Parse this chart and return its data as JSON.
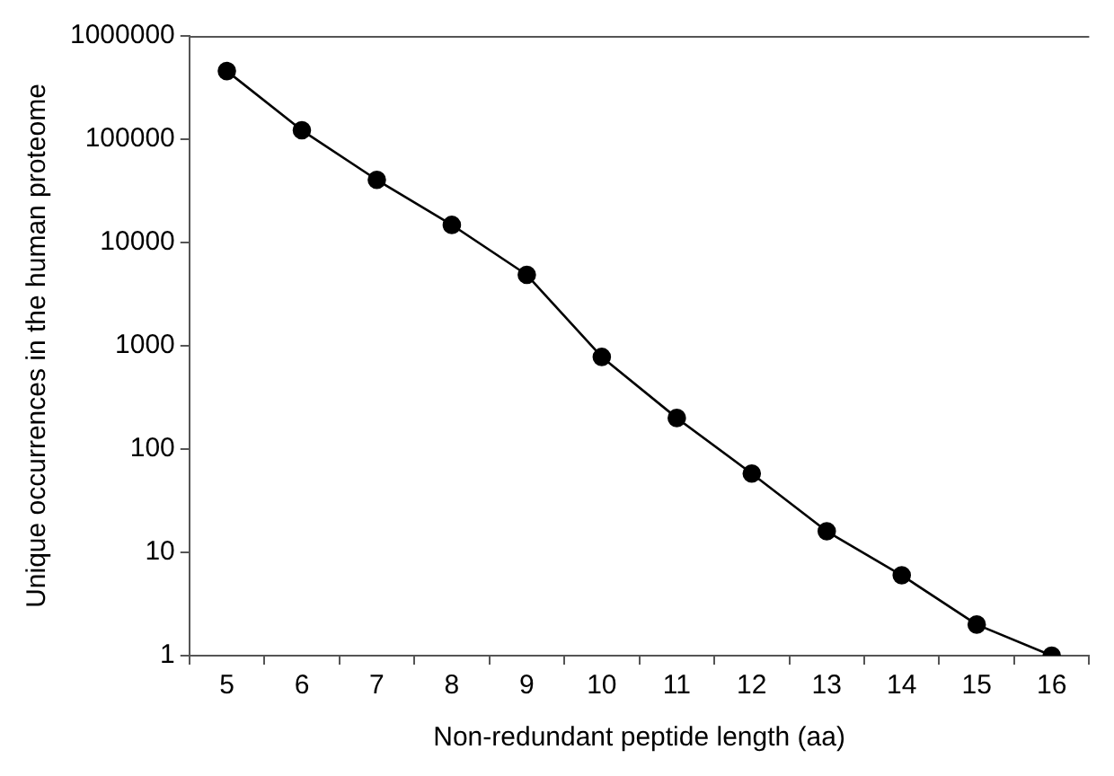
{
  "chart_data": {
    "type": "line",
    "xlabel": "Non-redundant peptide length (aa)",
    "ylabel": "Unique occurrences in the human proteome",
    "categories": [
      "5",
      "6",
      "7",
      "8",
      "9",
      "10",
      "11",
      "12",
      "13",
      "14",
      "15",
      "16"
    ],
    "series": [
      {
        "color": "#000000",
        "values": [
          457000,
          122000,
          40400,
          14800,
          4860,
          780,
          200,
          58,
          16,
          6,
          2,
          1
        ]
      }
    ],
    "log": "y",
    "ylim": [
      1,
      1000000
    ],
    "yticks": [
      1,
      10,
      100,
      1000,
      10000,
      100000,
      1000000
    ],
    "grid": false,
    "legend": false,
    "marker": "circle",
    "line_style": "solid"
  }
}
